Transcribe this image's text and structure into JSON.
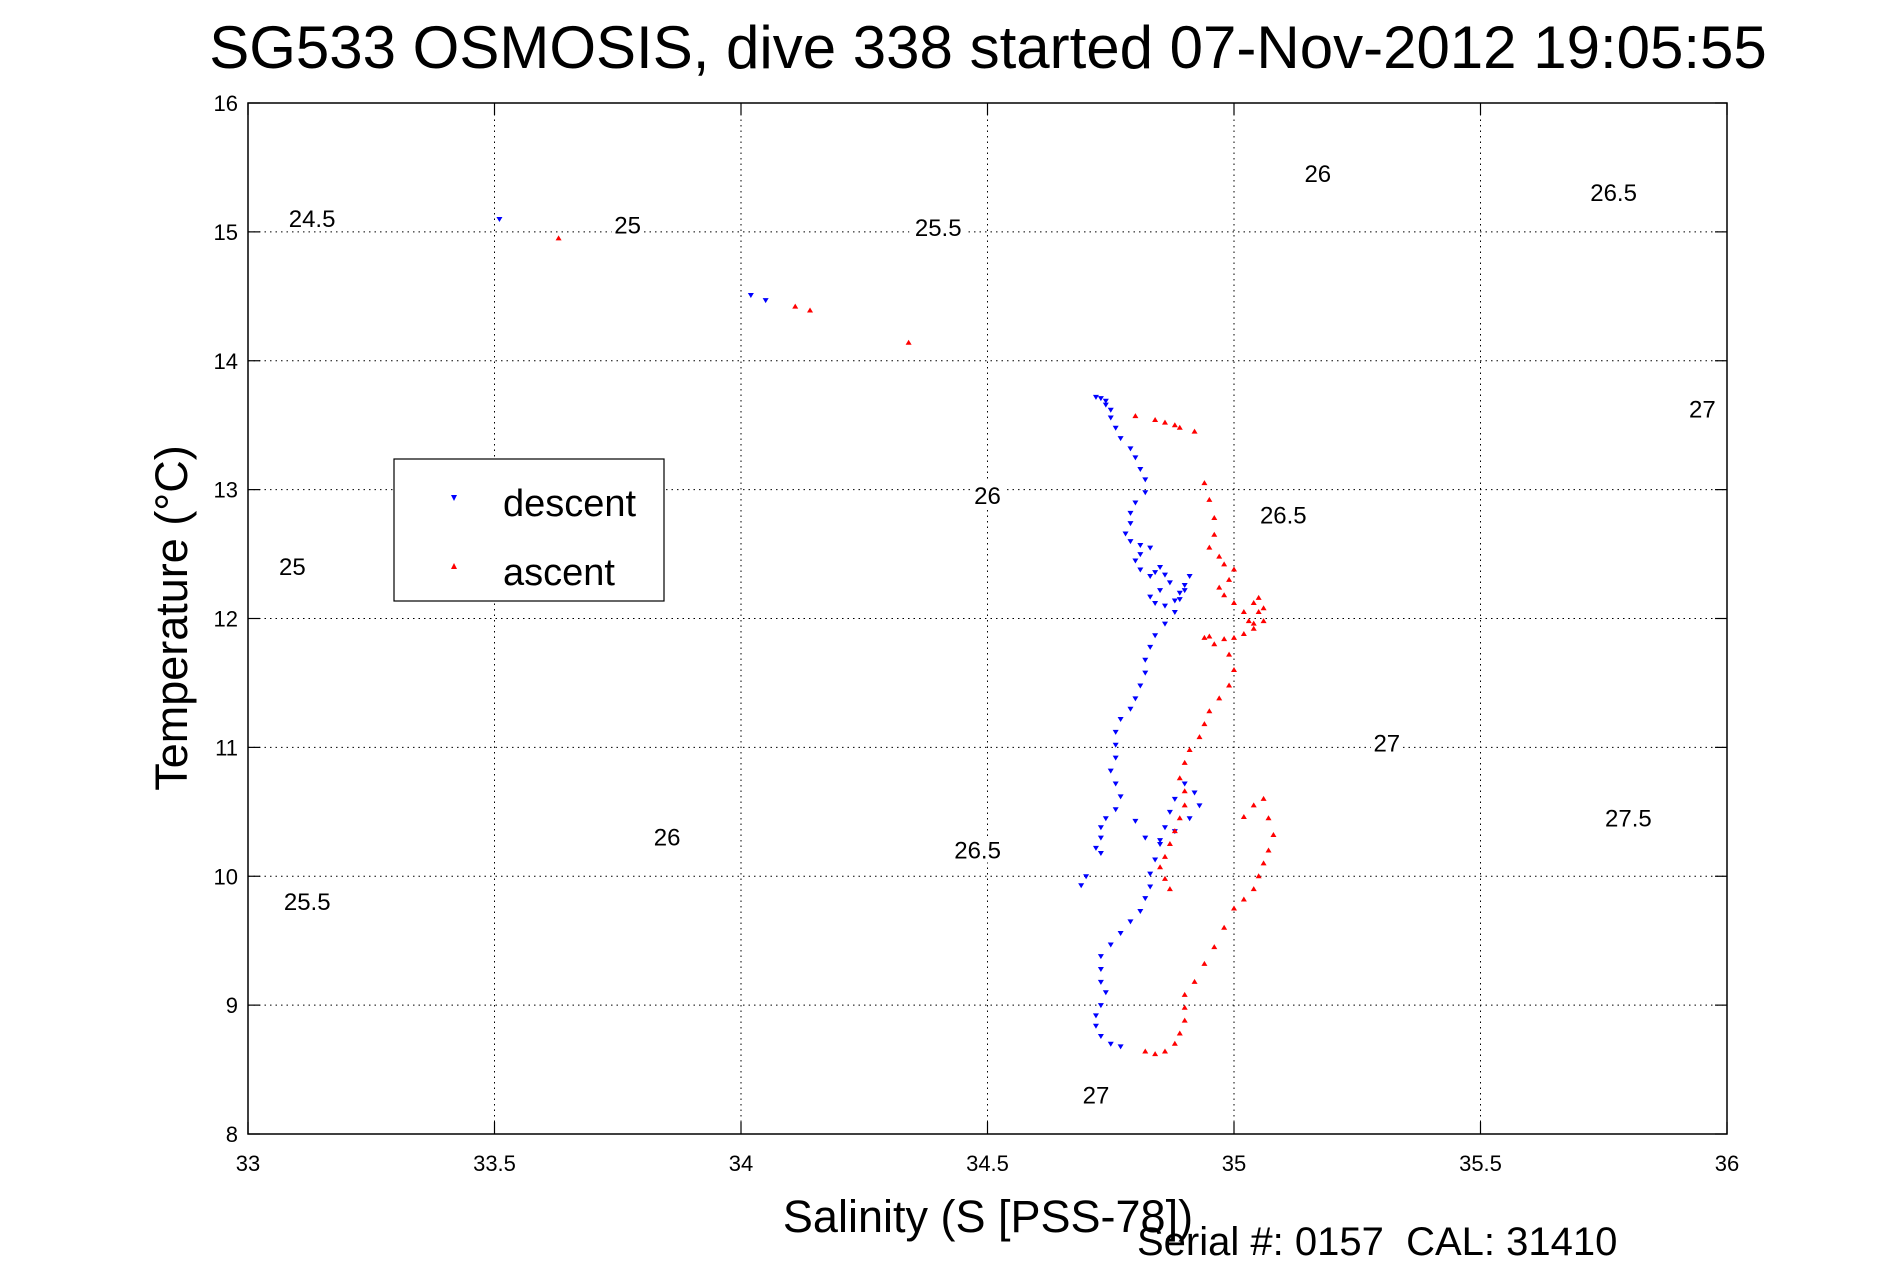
{
  "chart_data": {
    "type": "scatter",
    "title": "SG533 OSMOSIS, dive 338 started 07-Nov-2012 19:05:55",
    "xlabel": "Salinity (S [PSS-78])",
    "ylabel": "Temperature (°C)",
    "xlim": [
      33,
      36
    ],
    "ylim": [
      8,
      16
    ],
    "xticks": [
      "33",
      "33.5",
      "34",
      "34.5",
      "35",
      "35.5",
      "36"
    ],
    "yticks": [
      "8",
      "9",
      "10",
      "11",
      "12",
      "13",
      "14",
      "15",
      "16"
    ],
    "grid": true,
    "legend_position": "left",
    "footer": "Serial #: 0157  CAL: 31410",
    "series": [
      {
        "name": "descent",
        "color": "#0000ff",
        "marker": "triangle-down",
        "points": [
          [
            33.51,
            15.1
          ],
          [
            34.02,
            14.51
          ],
          [
            34.05,
            14.47
          ],
          [
            34.72,
            13.72
          ],
          [
            34.73,
            13.71
          ],
          [
            34.74,
            13.69
          ],
          [
            34.74,
            13.66
          ],
          [
            34.75,
            13.62
          ],
          [
            34.75,
            13.56
          ],
          [
            34.76,
            13.48
          ],
          [
            34.77,
            13.4
          ],
          [
            34.79,
            13.32
          ],
          [
            34.8,
            13.25
          ],
          [
            34.81,
            13.16
          ],
          [
            34.82,
            13.08
          ],
          [
            34.82,
            12.98
          ],
          [
            34.8,
            12.9
          ],
          [
            34.79,
            12.82
          ],
          [
            34.79,
            12.74
          ],
          [
            34.78,
            12.66
          ],
          [
            34.79,
            12.6
          ],
          [
            34.81,
            12.57
          ],
          [
            34.83,
            12.55
          ],
          [
            34.81,
            12.5
          ],
          [
            34.8,
            12.45
          ],
          [
            34.81,
            12.38
          ],
          [
            34.83,
            12.33
          ],
          [
            34.84,
            12.36
          ],
          [
            34.85,
            12.4
          ],
          [
            34.86,
            12.34
          ],
          [
            34.87,
            12.28
          ],
          [
            34.85,
            12.22
          ],
          [
            34.83,
            12.17
          ],
          [
            34.84,
            12.12
          ],
          [
            34.86,
            12.1
          ],
          [
            34.88,
            12.14
          ],
          [
            34.89,
            12.2
          ],
          [
            34.9,
            12.26
          ],
          [
            34.91,
            12.33
          ],
          [
            34.9,
            12.22
          ],
          [
            34.89,
            12.15
          ],
          [
            34.88,
            12.05
          ],
          [
            34.86,
            11.96
          ],
          [
            34.84,
            11.87
          ],
          [
            34.83,
            11.78
          ],
          [
            34.82,
            11.68
          ],
          [
            34.82,
            11.58
          ],
          [
            34.81,
            11.48
          ],
          [
            34.8,
            11.38
          ],
          [
            34.79,
            11.3
          ],
          [
            34.77,
            11.22
          ],
          [
            34.76,
            11.12
          ],
          [
            34.76,
            11.02
          ],
          [
            34.76,
            10.92
          ],
          [
            34.75,
            10.82
          ],
          [
            34.76,
            10.72
          ],
          [
            34.77,
            10.62
          ],
          [
            34.76,
            10.52
          ],
          [
            34.74,
            10.45
          ],
          [
            34.73,
            10.38
          ],
          [
            34.73,
            10.3
          ],
          [
            34.72,
            10.22
          ],
          [
            34.73,
            10.18
          ],
          [
            34.7,
            10.0
          ],
          [
            34.69,
            9.93
          ],
          [
            34.8,
            10.43
          ],
          [
            34.82,
            10.3
          ],
          [
            34.85,
            10.28
          ],
          [
            34.88,
            10.35
          ],
          [
            34.91,
            10.45
          ],
          [
            34.93,
            10.55
          ],
          [
            34.92,
            10.65
          ],
          [
            34.9,
            10.72
          ],
          [
            34.88,
            10.6
          ],
          [
            34.87,
            10.5
          ],
          [
            34.86,
            10.38
          ],
          [
            34.85,
            10.25
          ],
          [
            34.84,
            10.13
          ],
          [
            34.83,
            10.02
          ],
          [
            34.83,
            9.92
          ],
          [
            34.82,
            9.83
          ],
          [
            34.81,
            9.73
          ],
          [
            34.79,
            9.65
          ],
          [
            34.77,
            9.56
          ],
          [
            34.75,
            9.47
          ],
          [
            34.73,
            9.38
          ],
          [
            34.73,
            9.28
          ],
          [
            34.73,
            9.18
          ],
          [
            34.74,
            9.1
          ],
          [
            34.73,
            9.0
          ],
          [
            34.72,
            8.92
          ],
          [
            34.72,
            8.84
          ],
          [
            34.73,
            8.76
          ],
          [
            34.75,
            8.7
          ],
          [
            34.77,
            8.68
          ]
        ]
      },
      {
        "name": "ascent",
        "color": "#ff0000",
        "marker": "triangle-up",
        "points": [
          [
            33.63,
            14.95
          ],
          [
            34.11,
            14.42
          ],
          [
            34.14,
            14.39
          ],
          [
            34.34,
            14.14
          ],
          [
            34.8,
            13.57
          ],
          [
            34.84,
            13.54
          ],
          [
            34.86,
            13.52
          ],
          [
            34.88,
            13.5
          ],
          [
            34.89,
            13.48
          ],
          [
            34.92,
            13.45
          ],
          [
            34.94,
            13.05
          ],
          [
            34.95,
            12.92
          ],
          [
            34.96,
            12.78
          ],
          [
            34.96,
            12.65
          ],
          [
            34.95,
            12.55
          ],
          [
            34.97,
            12.48
          ],
          [
            34.98,
            12.42
          ],
          [
            35.0,
            12.38
          ],
          [
            34.99,
            12.3
          ],
          [
            34.97,
            12.24
          ],
          [
            34.98,
            12.18
          ],
          [
            35.0,
            12.12
          ],
          [
            35.02,
            12.05
          ],
          [
            35.03,
            11.98
          ],
          [
            35.04,
            11.92
          ],
          [
            35.06,
            11.98
          ],
          [
            35.05,
            12.05
          ],
          [
            35.04,
            12.12
          ],
          [
            35.05,
            12.16
          ],
          [
            35.06,
            12.08
          ],
          [
            35.04,
            11.96
          ],
          [
            35.02,
            11.88
          ],
          [
            35.0,
            11.85
          ],
          [
            34.98,
            11.84
          ],
          [
            34.95,
            11.86
          ],
          [
            34.94,
            11.85
          ],
          [
            34.96,
            11.8
          ],
          [
            34.99,
            11.72
          ],
          [
            35.0,
            11.6
          ],
          [
            34.99,
            11.48
          ],
          [
            34.97,
            11.38
          ],
          [
            34.95,
            11.28
          ],
          [
            34.94,
            11.18
          ],
          [
            34.93,
            11.08
          ],
          [
            34.91,
            10.98
          ],
          [
            34.9,
            10.88
          ],
          [
            34.89,
            10.76
          ],
          [
            34.9,
            10.66
          ],
          [
            34.9,
            10.55
          ],
          [
            34.89,
            10.45
          ],
          [
            34.88,
            10.35
          ],
          [
            34.87,
            10.25
          ],
          [
            34.86,
            10.15
          ],
          [
            34.85,
            10.07
          ],
          [
            34.86,
            9.98
          ],
          [
            34.87,
            9.9
          ],
          [
            35.02,
            10.46
          ],
          [
            35.04,
            10.55
          ],
          [
            35.06,
            10.6
          ],
          [
            35.07,
            10.45
          ],
          [
            35.08,
            10.32
          ],
          [
            35.07,
            10.2
          ],
          [
            35.06,
            10.1
          ],
          [
            35.05,
            10.0
          ],
          [
            35.04,
            9.9
          ],
          [
            35.02,
            9.82
          ],
          [
            35.0,
            9.75
          ],
          [
            34.98,
            9.6
          ],
          [
            34.96,
            9.45
          ],
          [
            34.94,
            9.32
          ],
          [
            34.92,
            9.18
          ],
          [
            34.9,
            9.08
          ],
          [
            34.9,
            8.98
          ],
          [
            34.9,
            8.88
          ],
          [
            34.89,
            8.78
          ],
          [
            34.88,
            8.7
          ],
          [
            34.86,
            8.64
          ],
          [
            34.84,
            8.62
          ],
          [
            34.82,
            8.64
          ]
        ]
      }
    ],
    "density_contours": {
      "label_positions": [
        {
          "label": "24.5",
          "s": 33.13,
          "t": 15.1
        },
        {
          "label": "25",
          "s": 33.77,
          "t": 15.05
        },
        {
          "label": "25",
          "s": 33.09,
          "t": 12.4
        },
        {
          "label": "25.5",
          "s": 34.4,
          "t": 15.03
        },
        {
          "label": "25.5",
          "s": 33.12,
          "t": 9.8
        },
        {
          "label": "26",
          "s": 35.17,
          "t": 15.45
        },
        {
          "label": "26",
          "s": 34.5,
          "t": 12.95
        },
        {
          "label": "26",
          "s": 33.85,
          "t": 10.3
        },
        {
          "label": "26.5",
          "s": 35.77,
          "t": 15.3
        },
        {
          "label": "26.5",
          "s": 35.1,
          "t": 12.8
        },
        {
          "label": "26.5",
          "s": 34.48,
          "t": 10.2
        },
        {
          "label": "27",
          "s": 35.95,
          "t": 13.62
        },
        {
          "label": "27",
          "s": 35.31,
          "t": 11.03
        },
        {
          "label": "27",
          "s": 34.72,
          "t": 8.3
        },
        {
          "label": "27.5",
          "s": 35.8,
          "t": 10.45
        }
      ]
    }
  }
}
